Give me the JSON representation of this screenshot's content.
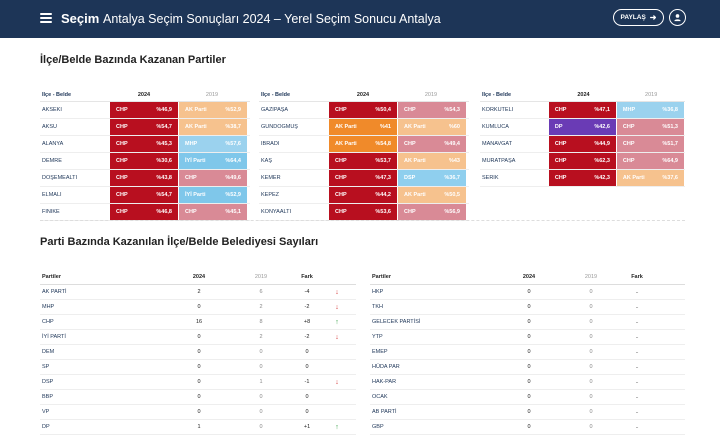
{
  "header": {
    "brand": "Seçim",
    "title": "Antalya Seçim Sonuçları 2024 – Yerel Seçim Sonucu Antalya",
    "share_label": "PAYLAŞ",
    "share_icon": "share-arrow-icon",
    "user_icon": "user-icon"
  },
  "section1": {
    "title": "İlçe/Belde Bazında Kazanan Partiler"
  },
  "section2": {
    "title": "Parti Bazında Kazanılan İlçe/Belde Belediyesi Sayıları"
  },
  "colors": {
    "CHP": "#b80f1f",
    "CHP_2019": "#d98a96",
    "AKP": "#f08a2a",
    "AKP_2019": "#f6c28e",
    "IYI": "#7fc7ea",
    "MHP": "#9bd2ee",
    "DSP": "#8fcfee",
    "DP": "#6a3bb5"
  },
  "result_tables": [
    {
      "header": {
        "name": "İlçe - Belde",
        "y2024": "2024",
        "y2019": "2019"
      },
      "rows": [
        {
          "name": "AKSEKİ",
          "p24": "CHP",
          "v24": "%46,9",
          "c24": "CHP",
          "p19": "AK Parti",
          "v19": "%52,9",
          "c19": "AKP_2019"
        },
        {
          "name": "AKSU",
          "p24": "CHP",
          "v24": "%54,7",
          "c24": "CHP",
          "p19": "AK Parti",
          "v19": "%38,7",
          "c19": "AKP_2019"
        },
        {
          "name": "ALANYA",
          "p24": "CHP",
          "v24": "%45,3",
          "c24": "CHP",
          "p19": "MHP",
          "v19": "%57,6",
          "c19": "MHP"
        },
        {
          "name": "DEMRE",
          "p24": "CHP",
          "v24": "%30,6",
          "c24": "CHP",
          "p19": "İYİ Parti",
          "v19": "%64,4",
          "c19": "IYI"
        },
        {
          "name": "DÖŞEMEALTI",
          "p24": "CHP",
          "v24": "%43,8",
          "c24": "CHP",
          "p19": "CHP",
          "v19": "%49,6",
          "c19": "CHP_2019"
        },
        {
          "name": "ELMALI",
          "p24": "CHP",
          "v24": "%54,7",
          "c24": "CHP",
          "p19": "İYİ Parti",
          "v19": "%52,9",
          "c19": "IYI"
        },
        {
          "name": "FİNİKE",
          "p24": "CHP",
          "v24": "%46,8",
          "c24": "CHP",
          "p19": "CHP",
          "v19": "%45,1",
          "c19": "CHP_2019"
        }
      ]
    },
    {
      "header": {
        "name": "İlçe - Belde",
        "y2024": "2024",
        "y2019": "2019"
      },
      "rows": [
        {
          "name": "GAZİPAŞA",
          "p24": "CHP",
          "v24": "%50,4",
          "c24": "CHP",
          "p19": "CHP",
          "v19": "%54,3",
          "c19": "CHP_2019"
        },
        {
          "name": "GÜNDOĞMUŞ",
          "p24": "AK Parti",
          "v24": "%41",
          "c24": "AKP",
          "p19": "AK Parti",
          "v19": "%60",
          "c19": "AKP_2019"
        },
        {
          "name": "İBRADI",
          "p24": "AK Parti",
          "v24": "%54,8",
          "c24": "AKP",
          "p19": "CHP",
          "v19": "%49,4",
          "c19": "CHP_2019"
        },
        {
          "name": "KAŞ",
          "p24": "CHP",
          "v24": "%53,7",
          "c24": "CHP",
          "p19": "AK Parti",
          "v19": "%43",
          "c19": "AKP_2019"
        },
        {
          "name": "KEMER",
          "p24": "CHP",
          "v24": "%47,3",
          "c24": "CHP",
          "p19": "DSP",
          "v19": "%36,7",
          "c19": "DSP"
        },
        {
          "name": "KEPEZ",
          "p24": "CHP",
          "v24": "%44,2",
          "c24": "CHP",
          "p19": "AK Parti",
          "v19": "%50,5",
          "c19": "AKP_2019"
        },
        {
          "name": "KONYAALTI",
          "p24": "CHP",
          "v24": "%53,6",
          "c24": "CHP",
          "p19": "CHP",
          "v19": "%56,9",
          "c19": "CHP_2019"
        }
      ]
    },
    {
      "header": {
        "name": "İlçe - Belde",
        "y2024": "2024",
        "y2019": "2019"
      },
      "rows": [
        {
          "name": "KORKUTELİ",
          "p24": "CHP",
          "v24": "%47,1",
          "c24": "CHP",
          "p19": "MHP",
          "v19": "%36,8",
          "c19": "MHP"
        },
        {
          "name": "KUMLUCA",
          "p24": "DP",
          "v24": "%42,6",
          "c24": "DP",
          "p19": "CHP",
          "v19": "%51,3",
          "c19": "CHP_2019"
        },
        {
          "name": "MANAVGAT",
          "p24": "CHP",
          "v24": "%44,9",
          "c24": "CHP",
          "p19": "CHP",
          "v19": "%51,7",
          "c19": "CHP_2019"
        },
        {
          "name": "MURATPAŞA",
          "p24": "CHP",
          "v24": "%62,3",
          "c24": "CHP",
          "p19": "CHP",
          "v19": "%64,9",
          "c19": "CHP_2019"
        },
        {
          "name": "SERİK",
          "p24": "CHP",
          "v24": "%42,3",
          "c24": "CHP",
          "p19": "AK Parti",
          "v19": "%37,6",
          "c19": "AKP_2019"
        }
      ]
    }
  ],
  "party_tables": [
    {
      "header": {
        "name": "Partiler",
        "y2024": "2024",
        "y2019": "2019",
        "fark": "Fark"
      },
      "rows": [
        {
          "name": "AK PARTİ",
          "v24": "2",
          "v19": "6",
          "fark": "-4",
          "dir": "down"
        },
        {
          "name": "MHP",
          "v24": "0",
          "v19": "2",
          "fark": "-2",
          "dir": "down"
        },
        {
          "name": "CHP",
          "v24": "16",
          "v19": "8",
          "fark": "+8",
          "dir": "up"
        },
        {
          "name": "İYİ PARTİ",
          "v24": "0",
          "v19": "2",
          "fark": "-2",
          "dir": "down"
        },
        {
          "name": "DEM",
          "v24": "0",
          "v19": "0",
          "fark": "0",
          "dir": "none"
        },
        {
          "name": "SP",
          "v24": "0",
          "v19": "0",
          "fark": "0",
          "dir": "none"
        },
        {
          "name": "DSP",
          "v24": "0",
          "v19": "1",
          "fark": "-1",
          "dir": "down"
        },
        {
          "name": "BBP",
          "v24": "0",
          "v19": "0",
          "fark": "0",
          "dir": "none"
        },
        {
          "name": "VP",
          "v24": "0",
          "v19": "0",
          "fark": "0",
          "dir": "none"
        },
        {
          "name": "DP",
          "v24": "1",
          "v19": "0",
          "fark": "+1",
          "dir": "up"
        }
      ]
    },
    {
      "header": {
        "name": "Partiler",
        "y2024": "2024",
        "y2019": "2019",
        "fark": "Fark"
      },
      "rows": [
        {
          "name": "HKP",
          "v24": "0",
          "v19": "0",
          "fark": "..",
          "dir": "none"
        },
        {
          "name": "TKH",
          "v24": "0",
          "v19": "0",
          "fark": "..",
          "dir": "none"
        },
        {
          "name": "GELECEK PARTİSİ",
          "v24": "0",
          "v19": "0",
          "fark": "..",
          "dir": "none"
        },
        {
          "name": "YTP",
          "v24": "0",
          "v19": "0",
          "fark": "..",
          "dir": "none"
        },
        {
          "name": "EMEP",
          "v24": "0",
          "v19": "0",
          "fark": "..",
          "dir": "none"
        },
        {
          "name": "HÜDA PAR",
          "v24": "0",
          "v19": "0",
          "fark": "..",
          "dir": "none"
        },
        {
          "name": "HAK-PAR",
          "v24": "0",
          "v19": "0",
          "fark": "..",
          "dir": "none"
        },
        {
          "name": "OCAK",
          "v24": "0",
          "v19": "0",
          "fark": "..",
          "dir": "none"
        },
        {
          "name": "AB PARTİ",
          "v24": "0",
          "v19": "0",
          "fark": "..",
          "dir": "none"
        },
        {
          "name": "GBP",
          "v24": "0",
          "v19": "0",
          "fark": "..",
          "dir": "none"
        }
      ]
    }
  ]
}
